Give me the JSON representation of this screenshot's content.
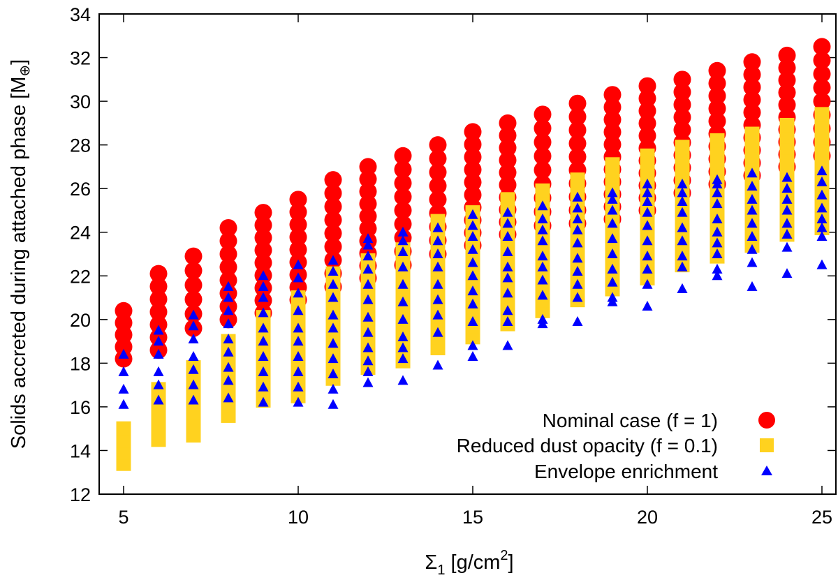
{
  "chart_data": {
    "type": "scatter",
    "title": "",
    "xlabel": {
      "sigma": "Σ",
      "sub": "1",
      "text": " [g/cm",
      "sup": "2",
      "close": "]"
    },
    "ylabel": {
      "text": "Solids accreted during attached phase [M",
      "sub": "⊕",
      "close": "]"
    },
    "xlim": [
      4.3,
      25.4
    ],
    "ylim": [
      12,
      34
    ],
    "xticks": [
      5,
      10,
      15,
      20,
      25
    ],
    "yticks": [
      12,
      14,
      16,
      18,
      20,
      22,
      24,
      26,
      28,
      30,
      32,
      34
    ],
    "grid": false,
    "legend_position": "bottom-right",
    "series": [
      {
        "name": "Nominal case (f = 1)",
        "marker": "circle",
        "color": "#ff0000",
        "ranges": [
          [
            5,
            18.2,
            20.4
          ],
          [
            6,
            18.6,
            22.1
          ],
          [
            7,
            19.6,
            22.9
          ],
          [
            8,
            20.0,
            24.2
          ],
          [
            9,
            20.3,
            24.9
          ],
          [
            10,
            20.9,
            25.5
          ],
          [
            11,
            21.5,
            26.4
          ],
          [
            12,
            21.9,
            27.0
          ],
          [
            13,
            22.5,
            27.5
          ],
          [
            14,
            23.0,
            28.0
          ],
          [
            15,
            23.4,
            28.6
          ],
          [
            16,
            23.9,
            29.0
          ],
          [
            17,
            24.3,
            29.4
          ],
          [
            18,
            24.4,
            29.9
          ],
          [
            19,
            24.6,
            30.3
          ],
          [
            20,
            25.0,
            30.7
          ],
          [
            21,
            25.8,
            31.0
          ],
          [
            22,
            26.2,
            31.4
          ],
          [
            23,
            26.6,
            31.8
          ],
          [
            24,
            27.0,
            32.1
          ],
          [
            25,
            27.5,
            32.5
          ]
        ]
      },
      {
        "name": "Reduced dust opacity (f = 0.1)",
        "marker": "square",
        "color": "#ffd21f",
        "ranges": [
          [
            5,
            13.4,
            15.0
          ],
          [
            6,
            14.5,
            16.8
          ],
          [
            7,
            14.7,
            17.8
          ],
          [
            8,
            15.6,
            19.0
          ],
          [
            9,
            16.3,
            20.1
          ],
          [
            10,
            16.5,
            21.0
          ],
          [
            11,
            17.3,
            22.1
          ],
          [
            12,
            17.8,
            22.7
          ],
          [
            13,
            18.1,
            23.2
          ],
          [
            14,
            18.7,
            24.5
          ],
          [
            15,
            19.2,
            24.9
          ],
          [
            16,
            19.8,
            25.5
          ],
          [
            17,
            20.4,
            25.9
          ],
          [
            18,
            20.9,
            26.4
          ],
          [
            19,
            21.4,
            27.1
          ],
          [
            20,
            21.9,
            27.5
          ],
          [
            21,
            22.5,
            27.9
          ],
          [
            22,
            22.9,
            28.2
          ],
          [
            23,
            23.4,
            28.5
          ],
          [
            24,
            23.9,
            28.9
          ],
          [
            25,
            24.2,
            29.4
          ]
        ]
      },
      {
        "name": "Envelope enrichment",
        "marker": "triangle",
        "color": "#0000ff",
        "points": [
          [
            5,
            16.1
          ],
          [
            5,
            16.8
          ],
          [
            5,
            17.6
          ],
          [
            5,
            18.4
          ],
          [
            6,
            16.3
          ],
          [
            6,
            17.0
          ],
          [
            6,
            17.6
          ],
          [
            6,
            18.4
          ],
          [
            6,
            19.0
          ],
          [
            6,
            19.5
          ],
          [
            7,
            16.3
          ],
          [
            7,
            17.0
          ],
          [
            7,
            17.7
          ],
          [
            7,
            18.3
          ],
          [
            7,
            19.1
          ],
          [
            7,
            19.7
          ],
          [
            7,
            20.2
          ],
          [
            8,
            16.4
          ],
          [
            8,
            17.2
          ],
          [
            8,
            17.8
          ],
          [
            8,
            18.5
          ],
          [
            8,
            19.1
          ],
          [
            8,
            19.8
          ],
          [
            8,
            20.4
          ],
          [
            8,
            21.0
          ],
          [
            8,
            21.5
          ],
          [
            9,
            16.2
          ],
          [
            9,
            16.9
          ],
          [
            9,
            17.6
          ],
          [
            9,
            18.3
          ],
          [
            9,
            19.0
          ],
          [
            9,
            19.6
          ],
          [
            9,
            20.3
          ],
          [
            9,
            21.0
          ],
          [
            9,
            21.5
          ],
          [
            9,
            22.0
          ],
          [
            10,
            16.2
          ],
          [
            10,
            16.9
          ],
          [
            10,
            17.6
          ],
          [
            10,
            18.3
          ],
          [
            10,
            19.0
          ],
          [
            10,
            19.6
          ],
          [
            10,
            20.4
          ],
          [
            10,
            21.2
          ],
          [
            10,
            21.9
          ],
          [
            10,
            22.5
          ],
          [
            11,
            16.1
          ],
          [
            11,
            16.8
          ],
          [
            11,
            17.5
          ],
          [
            11,
            18.2
          ],
          [
            11,
            18.9
          ],
          [
            11,
            19.6
          ],
          [
            11,
            20.2
          ],
          [
            11,
            21.0
          ],
          [
            11,
            21.6
          ],
          [
            11,
            22.2
          ],
          [
            11,
            22.7
          ],
          [
            12,
            17.1
          ],
          [
            12,
            17.6
          ],
          [
            12,
            18.1
          ],
          [
            12,
            18.7
          ],
          [
            12,
            19.4
          ],
          [
            12,
            20.1
          ],
          [
            12,
            20.9
          ],
          [
            12,
            21.6
          ],
          [
            12,
            22.3
          ],
          [
            12,
            22.9
          ],
          [
            12,
            23.4
          ],
          [
            12,
            23.7
          ],
          [
            13,
            17.2
          ],
          [
            13,
            18.2
          ],
          [
            13,
            18.7
          ],
          [
            13,
            19.2
          ],
          [
            13,
            20.0
          ],
          [
            13,
            20.8
          ],
          [
            13,
            21.6
          ],
          [
            13,
            22.4
          ],
          [
            13,
            23.1
          ],
          [
            13,
            23.6
          ],
          [
            13,
            24.0
          ],
          [
            14,
            17.9
          ],
          [
            14,
            19.4
          ],
          [
            14,
            20.2
          ],
          [
            14,
            20.9
          ],
          [
            14,
            21.6
          ],
          [
            14,
            22.4
          ],
          [
            14,
            23.0
          ],
          [
            14,
            23.6
          ],
          [
            14,
            24.2
          ],
          [
            15,
            18.3
          ],
          [
            15,
            18.8
          ],
          [
            15,
            19.9
          ],
          [
            15,
            20.7
          ],
          [
            15,
            21.3
          ],
          [
            15,
            22.0
          ],
          [
            15,
            22.6
          ],
          [
            15,
            23.2
          ],
          [
            15,
            23.8
          ],
          [
            15,
            24.3
          ],
          [
            15,
            24.8
          ],
          [
            16,
            18.8
          ],
          [
            16,
            19.9
          ],
          [
            16,
            20.4
          ],
          [
            16,
            21.2
          ],
          [
            16,
            21.9
          ],
          [
            16,
            22.4
          ],
          [
            16,
            23.1
          ],
          [
            16,
            23.8
          ],
          [
            16,
            24.4
          ],
          [
            16,
            24.9
          ],
          [
            17,
            19.8
          ],
          [
            17,
            20.0
          ],
          [
            17,
            21.1
          ],
          [
            17,
            21.8
          ],
          [
            17,
            22.4
          ],
          [
            17,
            22.9
          ],
          [
            17,
            23.6
          ],
          [
            17,
            24.1
          ],
          [
            17,
            24.6
          ],
          [
            17,
            25.2
          ],
          [
            18,
            19.9
          ],
          [
            18,
            21.0
          ],
          [
            18,
            21.6
          ],
          [
            18,
            22.2
          ],
          [
            18,
            22.8
          ],
          [
            18,
            23.5
          ],
          [
            18,
            24.1
          ],
          [
            18,
            24.6
          ],
          [
            18,
            25.1
          ],
          [
            18,
            25.6
          ],
          [
            19,
            20.8
          ],
          [
            19,
            21.0
          ],
          [
            19,
            21.7
          ],
          [
            19,
            22.3
          ],
          [
            19,
            23.0
          ],
          [
            19,
            23.7
          ],
          [
            19,
            24.4
          ],
          [
            19,
            25.0
          ],
          [
            19,
            25.5
          ],
          [
            19,
            25.8
          ],
          [
            20,
            20.6
          ],
          [
            20,
            21.6
          ],
          [
            20,
            22.3
          ],
          [
            20,
            22.9
          ],
          [
            20,
            23.6
          ],
          [
            20,
            24.3
          ],
          [
            20,
            24.9
          ],
          [
            20,
            25.4
          ],
          [
            20,
            25.8
          ],
          [
            20,
            26.2
          ],
          [
            21,
            21.4
          ],
          [
            21,
            21.4
          ],
          [
            21,
            22.4
          ],
          [
            21,
            22.9
          ],
          [
            21,
            23.6
          ],
          [
            21,
            24.2
          ],
          [
            21,
            24.9
          ],
          [
            21,
            25.4
          ],
          [
            21,
            25.8
          ],
          [
            21,
            26.2
          ],
          [
            22,
            22.0
          ],
          [
            22,
            22.3
          ],
          [
            22,
            23.0
          ],
          [
            22,
            23.5
          ],
          [
            22,
            24.0
          ],
          [
            22,
            24.6
          ],
          [
            22,
            25.3
          ],
          [
            22,
            25.8
          ],
          [
            22,
            26.2
          ],
          [
            22,
            26.4
          ],
          [
            23,
            21.5
          ],
          [
            23,
            22.6
          ],
          [
            23,
            23.2
          ],
          [
            23,
            23.8
          ],
          [
            23,
            24.4
          ],
          [
            23,
            25.0
          ],
          [
            23,
            25.5
          ],
          [
            23,
            26.1
          ],
          [
            23,
            26.7
          ],
          [
            24,
            22.1
          ],
          [
            24,
            23.3
          ],
          [
            24,
            23.9
          ],
          [
            24,
            24.4
          ],
          [
            24,
            25.0
          ],
          [
            24,
            25.5
          ],
          [
            24,
            26.0
          ],
          [
            24,
            26.5
          ],
          [
            25,
            22.5
          ],
          [
            25,
            23.8
          ],
          [
            25,
            24.2
          ],
          [
            25,
            24.6
          ],
          [
            25,
            25.1
          ],
          [
            25,
            25.7
          ],
          [
            25,
            26.3
          ],
          [
            25,
            26.8
          ]
        ]
      }
    ]
  }
}
